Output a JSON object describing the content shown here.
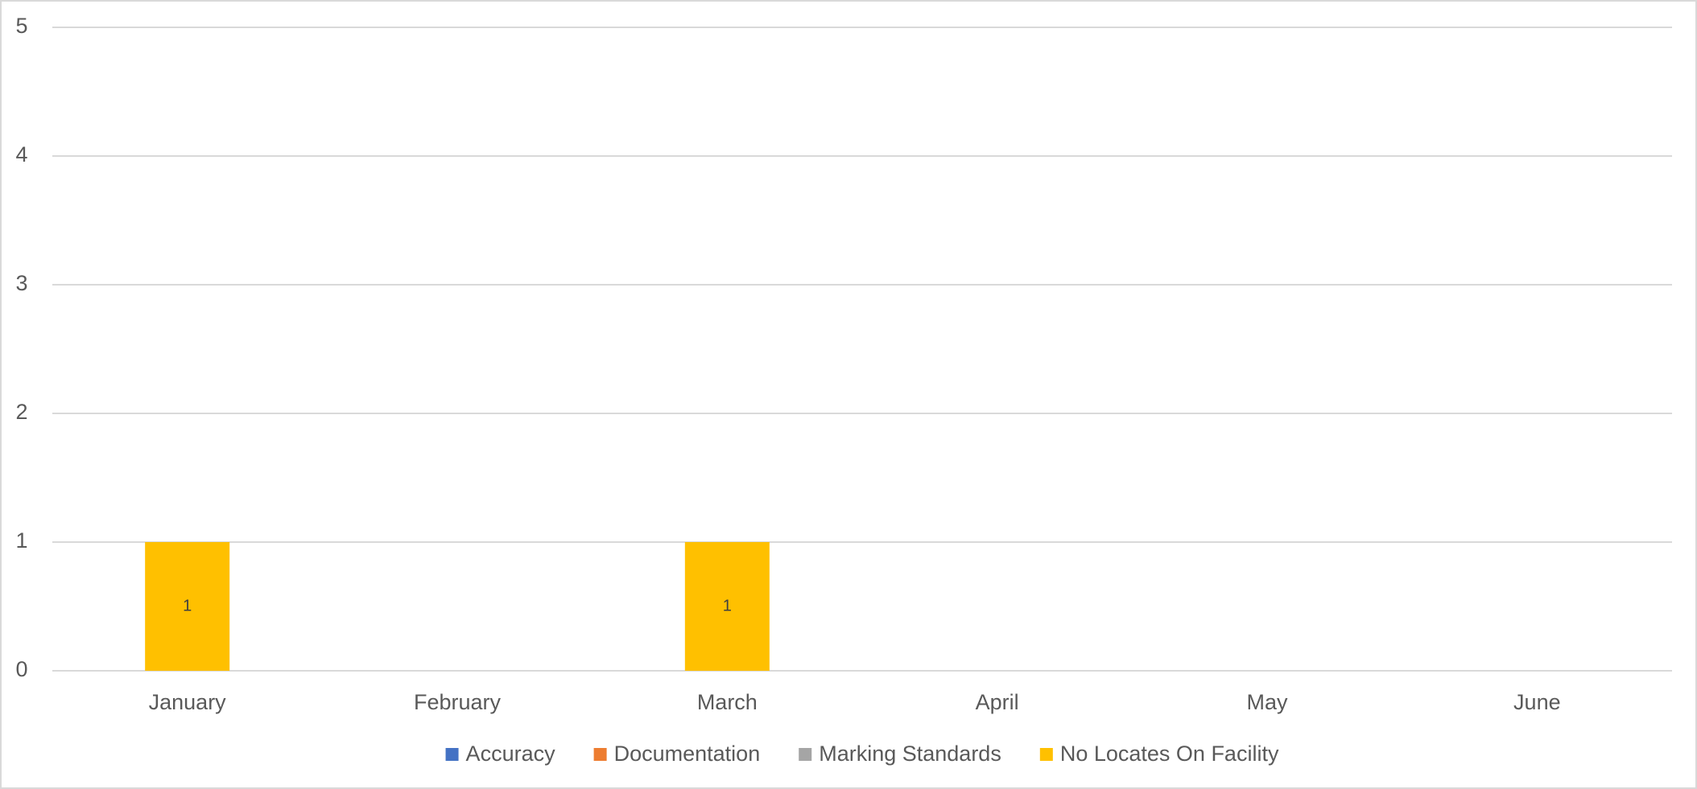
{
  "chart_data": {
    "type": "stacked_bar",
    "categories": [
      "January",
      "February",
      "March",
      "April",
      "May",
      "June"
    ],
    "series": [
      {
        "name": "Accuracy",
        "color": "#4472c4",
        "values": [
          0,
          0,
          0,
          0,
          0,
          0
        ]
      },
      {
        "name": "Documentation",
        "color": "#ed7d31",
        "values": [
          0,
          0,
          0,
          0,
          0,
          0
        ]
      },
      {
        "name": "Marking Standards",
        "color": "#a5a5a5",
        "values": [
          0,
          0,
          0,
          0,
          0,
          0
        ]
      },
      {
        "name": "No Locates On Facility",
        "color": "#ffc000",
        "values": [
          1,
          0,
          1,
          0,
          0,
          0
        ]
      }
    ],
    "ylim": [
      0,
      5
    ],
    "yticks": [
      0,
      1,
      2,
      3,
      4,
      5
    ],
    "grid": true,
    "legend": "bottom"
  }
}
